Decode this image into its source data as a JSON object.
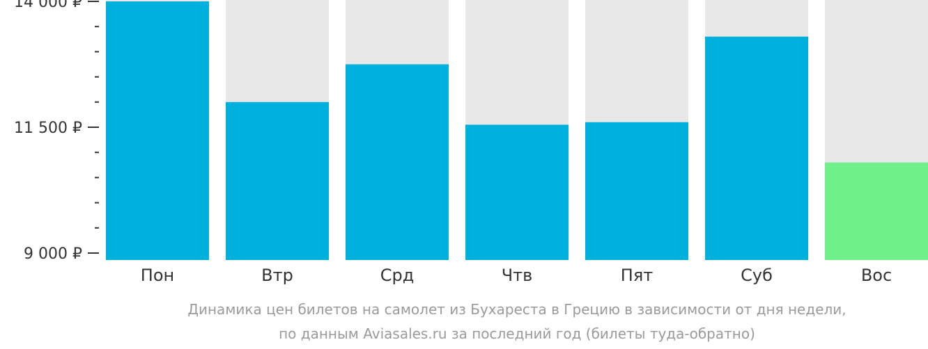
{
  "chart_data": {
    "type": "bar",
    "categories": [
      "Пон",
      "Втр",
      "Срд",
      "Чтв",
      "Пят",
      "Суб",
      "Вос"
    ],
    "values": [
      14000,
      12000,
      12750,
      11550,
      11600,
      13300,
      10800
    ],
    "ylim": [
      9000,
      14000
    ],
    "yticks": [
      {
        "value": 14000,
        "label": "14 000 ₽"
      },
      {
        "value": 11500,
        "label": "11 500 ₽"
      },
      {
        "value": 9000,
        "label": "9 000 ₽"
      }
    ],
    "minor_ticks": [
      13500,
      13000,
      12500,
      12000,
      11000,
      10500,
      10000,
      9500
    ],
    "highlight_index": 6,
    "colors": {
      "bar": "#00b0dc",
      "highlight": "#6ff08a",
      "track": "#e8e8e8",
      "axis": "#333333",
      "label": "#333333"
    },
    "caption": [
      "Динамика цен билетов на самолет из Бухареста в Грецию в зависимости от дня недели,",
      "по данным Aviasales.ru за последний год (билеты туда-обратно)"
    ]
  }
}
